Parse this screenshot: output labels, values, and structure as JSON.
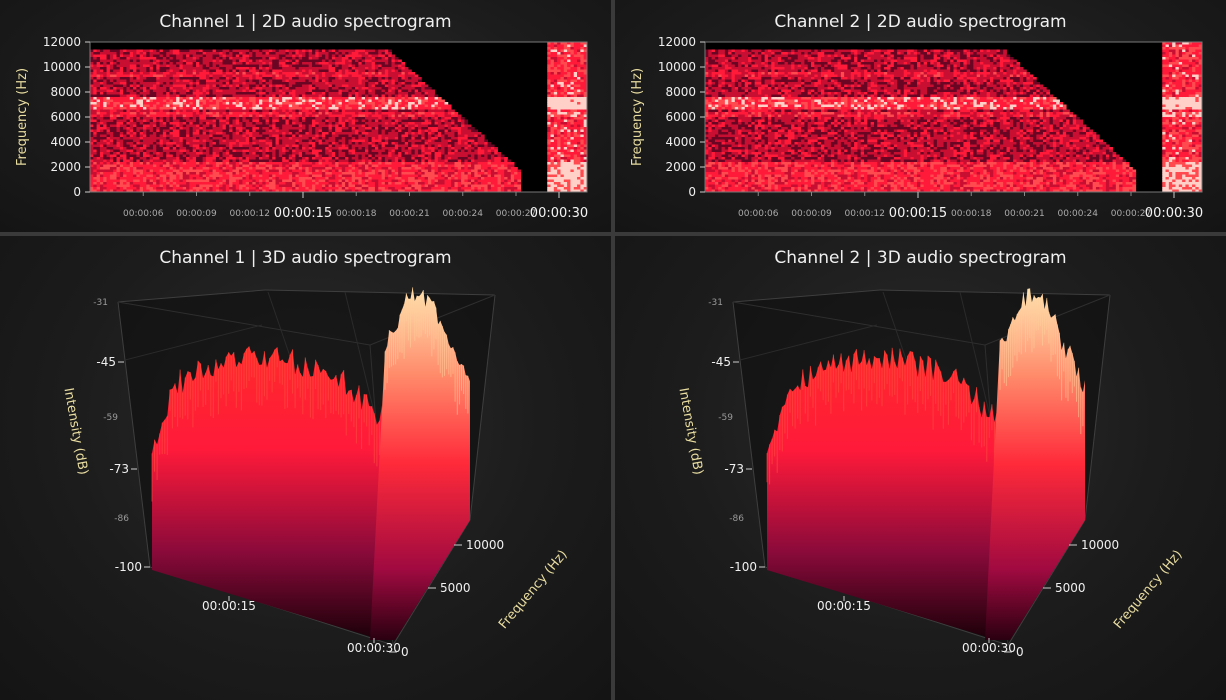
{
  "colors": {
    "accent": "#ff2a3a",
    "background": "#1c1c1c",
    "axis_title": "#e8dca0"
  },
  "panels": [
    {
      "title": "Channel 1 | 2D audio spectrogram",
      "chart_data": {
        "type": "heatmap",
        "ylabel": "Frequency (Hz)",
        "yticks": [
          "0",
          "2000",
          "4000",
          "6000",
          "8000",
          "10000",
          "12000"
        ],
        "xticks_minor": [
          "00:00:06",
          "00:00:09",
          "00:00:12",
          "00:00:18",
          "00:00:21",
          "00:00:24",
          "00:00:27"
        ],
        "xticks_major": [
          "00:00:15",
          "00:00:30"
        ],
        "ylim": [
          0,
          12000
        ]
      }
    },
    {
      "title": "Channel 2 | 2D audio spectrogram",
      "chart_data": {
        "type": "heatmap",
        "ylabel": "Frequency (Hz)",
        "yticks": [
          "0",
          "2000",
          "4000",
          "6000",
          "8000",
          "10000",
          "12000"
        ],
        "xticks_minor": [
          "00:00:06",
          "00:00:09",
          "00:00:12",
          "00:00:18",
          "00:00:21",
          "00:00:24",
          "00:00:27"
        ],
        "xticks_major": [
          "00:00:15",
          "00:00:30"
        ],
        "ylim": [
          0,
          12000
        ]
      }
    },
    {
      "title": "Channel 1 | 3D audio spectrogram",
      "chart_data": {
        "type": "area",
        "zlabel": "Intensity (dB)",
        "zticks_major": [
          "-100",
          "-73",
          "-45"
        ],
        "zticks_minor": [
          "-86",
          "-59",
          "-31"
        ],
        "xticks": [
          "00:00:15",
          "00:00:30"
        ],
        "yticks": [
          "0",
          "5000",
          "10000"
        ],
        "ylabel": "Frequency (Hz)"
      }
    },
    {
      "title": "Channel 2 | 3D audio spectrogram",
      "chart_data": {
        "type": "area",
        "zlabel": "Intensity (dB)",
        "zticks_major": [
          "-100",
          "-73",
          "-45"
        ],
        "zticks_minor": [
          "-86",
          "-59",
          "-31"
        ],
        "xticks": [
          "00:00:15",
          "00:00:30"
        ],
        "yticks": [
          "0",
          "5000",
          "10000"
        ],
        "ylabel": "Frequency (Hz)"
      }
    }
  ]
}
